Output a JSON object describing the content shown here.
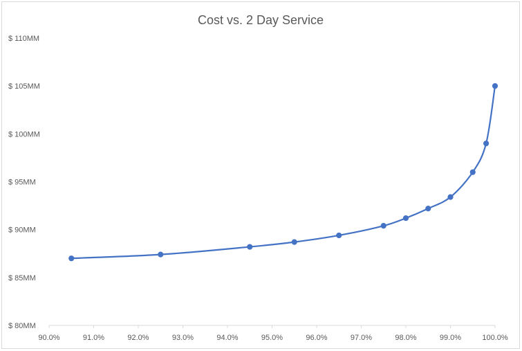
{
  "chart_data": {
    "type": "line",
    "title": "Cost vs. 2 Day Service",
    "xlabel": "",
    "ylabel": "",
    "xlim": [
      90.0,
      100.0
    ],
    "ylim": [
      80,
      110
    ],
    "x_ticks": [
      "90.0%",
      "91.0%",
      "92.0%",
      "93.0%",
      "94.0%",
      "95.0%",
      "96.0%",
      "97.0%",
      "98.0%",
      "99.0%",
      "100.0%"
    ],
    "y_ticks": [
      "$ 80MM",
      "$ 85MM",
      "$ 90MM",
      "$ 95MM",
      "$ 100MM",
      "$ 105MM",
      "$ 110MM"
    ],
    "grid": false,
    "legend": "none",
    "series_color": "#4472c4",
    "series": [
      {
        "x": [
          90.5,
          92.5,
          94.5,
          95.5,
          96.5,
          97.5,
          98.0,
          98.5,
          99.0,
          99.5,
          99.8,
          100.0
        ],
        "values": [
          87.0,
          87.4,
          88.2,
          88.7,
          89.4,
          90.4,
          91.2,
          92.2,
          93.4,
          96.0,
          99.0,
          105.0
        ]
      }
    ]
  }
}
